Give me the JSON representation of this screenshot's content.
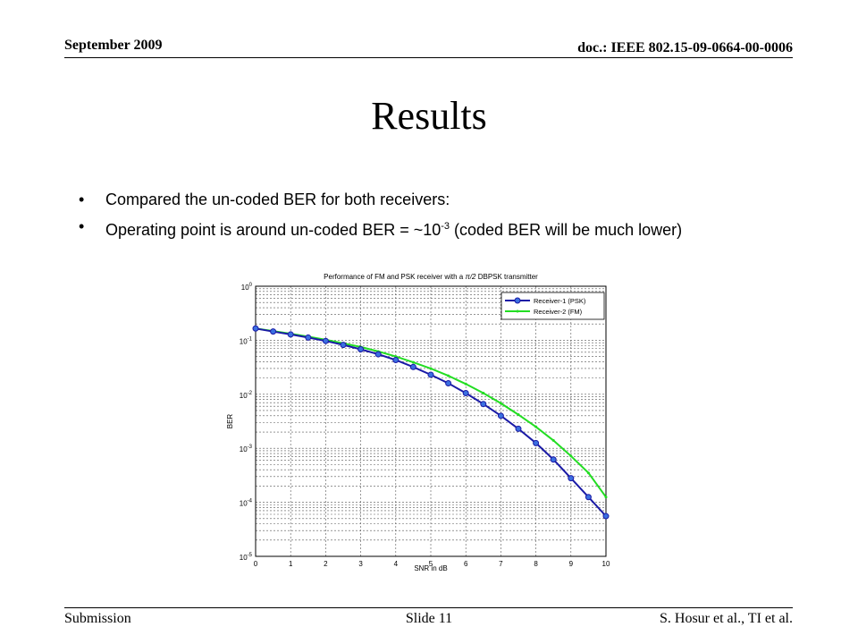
{
  "header": {
    "date": "September 2009",
    "doc_id": "doc.: IEEE 802.15-09-0664-00-0006"
  },
  "title": "Results",
  "bullets": [
    {
      "text": "Compared the un-coded BER for both receivers:"
    },
    {
      "pre": "Operating point is around un-coded BER = ~10",
      "sup": "-3",
      "post": " (coded BER will be much lower)"
    }
  ],
  "footer": {
    "left": "Submission",
    "center": "Slide 11",
    "right": "S. Hosur et al., TI et al."
  },
  "chart_data": {
    "type": "line",
    "title_pre": "Performance of FM and PSK receiver with a ",
    "title_sym": "π/2",
    "title_post": " DBPSK transmitter",
    "xlabel": "SNR in dB",
    "ylabel": "BER",
    "xlim": [
      0,
      10
    ],
    "ylim": [
      1e-05,
      1
    ],
    "yscale": "log",
    "grid": true,
    "legend_position": "top-right",
    "x_ticks": [
      "0",
      "1",
      "2",
      "3",
      "4",
      "5",
      "6",
      "7",
      "8",
      "9",
      "10"
    ],
    "y_tick_exponents": [
      "0",
      "-1",
      "-2",
      "-3",
      "-4",
      "-5"
    ],
    "x": [
      0,
      0.5,
      1,
      1.5,
      2,
      2.5,
      3,
      3.5,
      4,
      4.5,
      5,
      5.5,
      6,
      6.5,
      7,
      7.5,
      8,
      8.5,
      9,
      9.5,
      10
    ],
    "series": [
      {
        "name": "Receiver-1 (PSK)",
        "color": "#1a1aa6",
        "marker": "circle",
        "marker_color": "#3b6fe0",
        "values": [
          0.165,
          0.145,
          0.128,
          0.112,
          0.097,
          0.082,
          0.068,
          0.055,
          0.043,
          0.032,
          0.023,
          0.016,
          0.0105,
          0.0066,
          0.004,
          0.0023,
          0.00125,
          0.00062,
          0.00028,
          0.000125,
          5.55e-05
        ]
      },
      {
        "name": "Receiver-2 (FM)",
        "color": "#22dd22",
        "marker": "dot",
        "marker_color": "#22dd22",
        "values": [
          0.165,
          0.148,
          0.132,
          0.117,
          0.102,
          0.088,
          0.075,
          0.062,
          0.05,
          0.039,
          0.03,
          0.022,
          0.0155,
          0.0105,
          0.0068,
          0.0042,
          0.0025,
          0.0014,
          0.00072,
          0.00035,
          0.000125
        ]
      }
    ]
  }
}
